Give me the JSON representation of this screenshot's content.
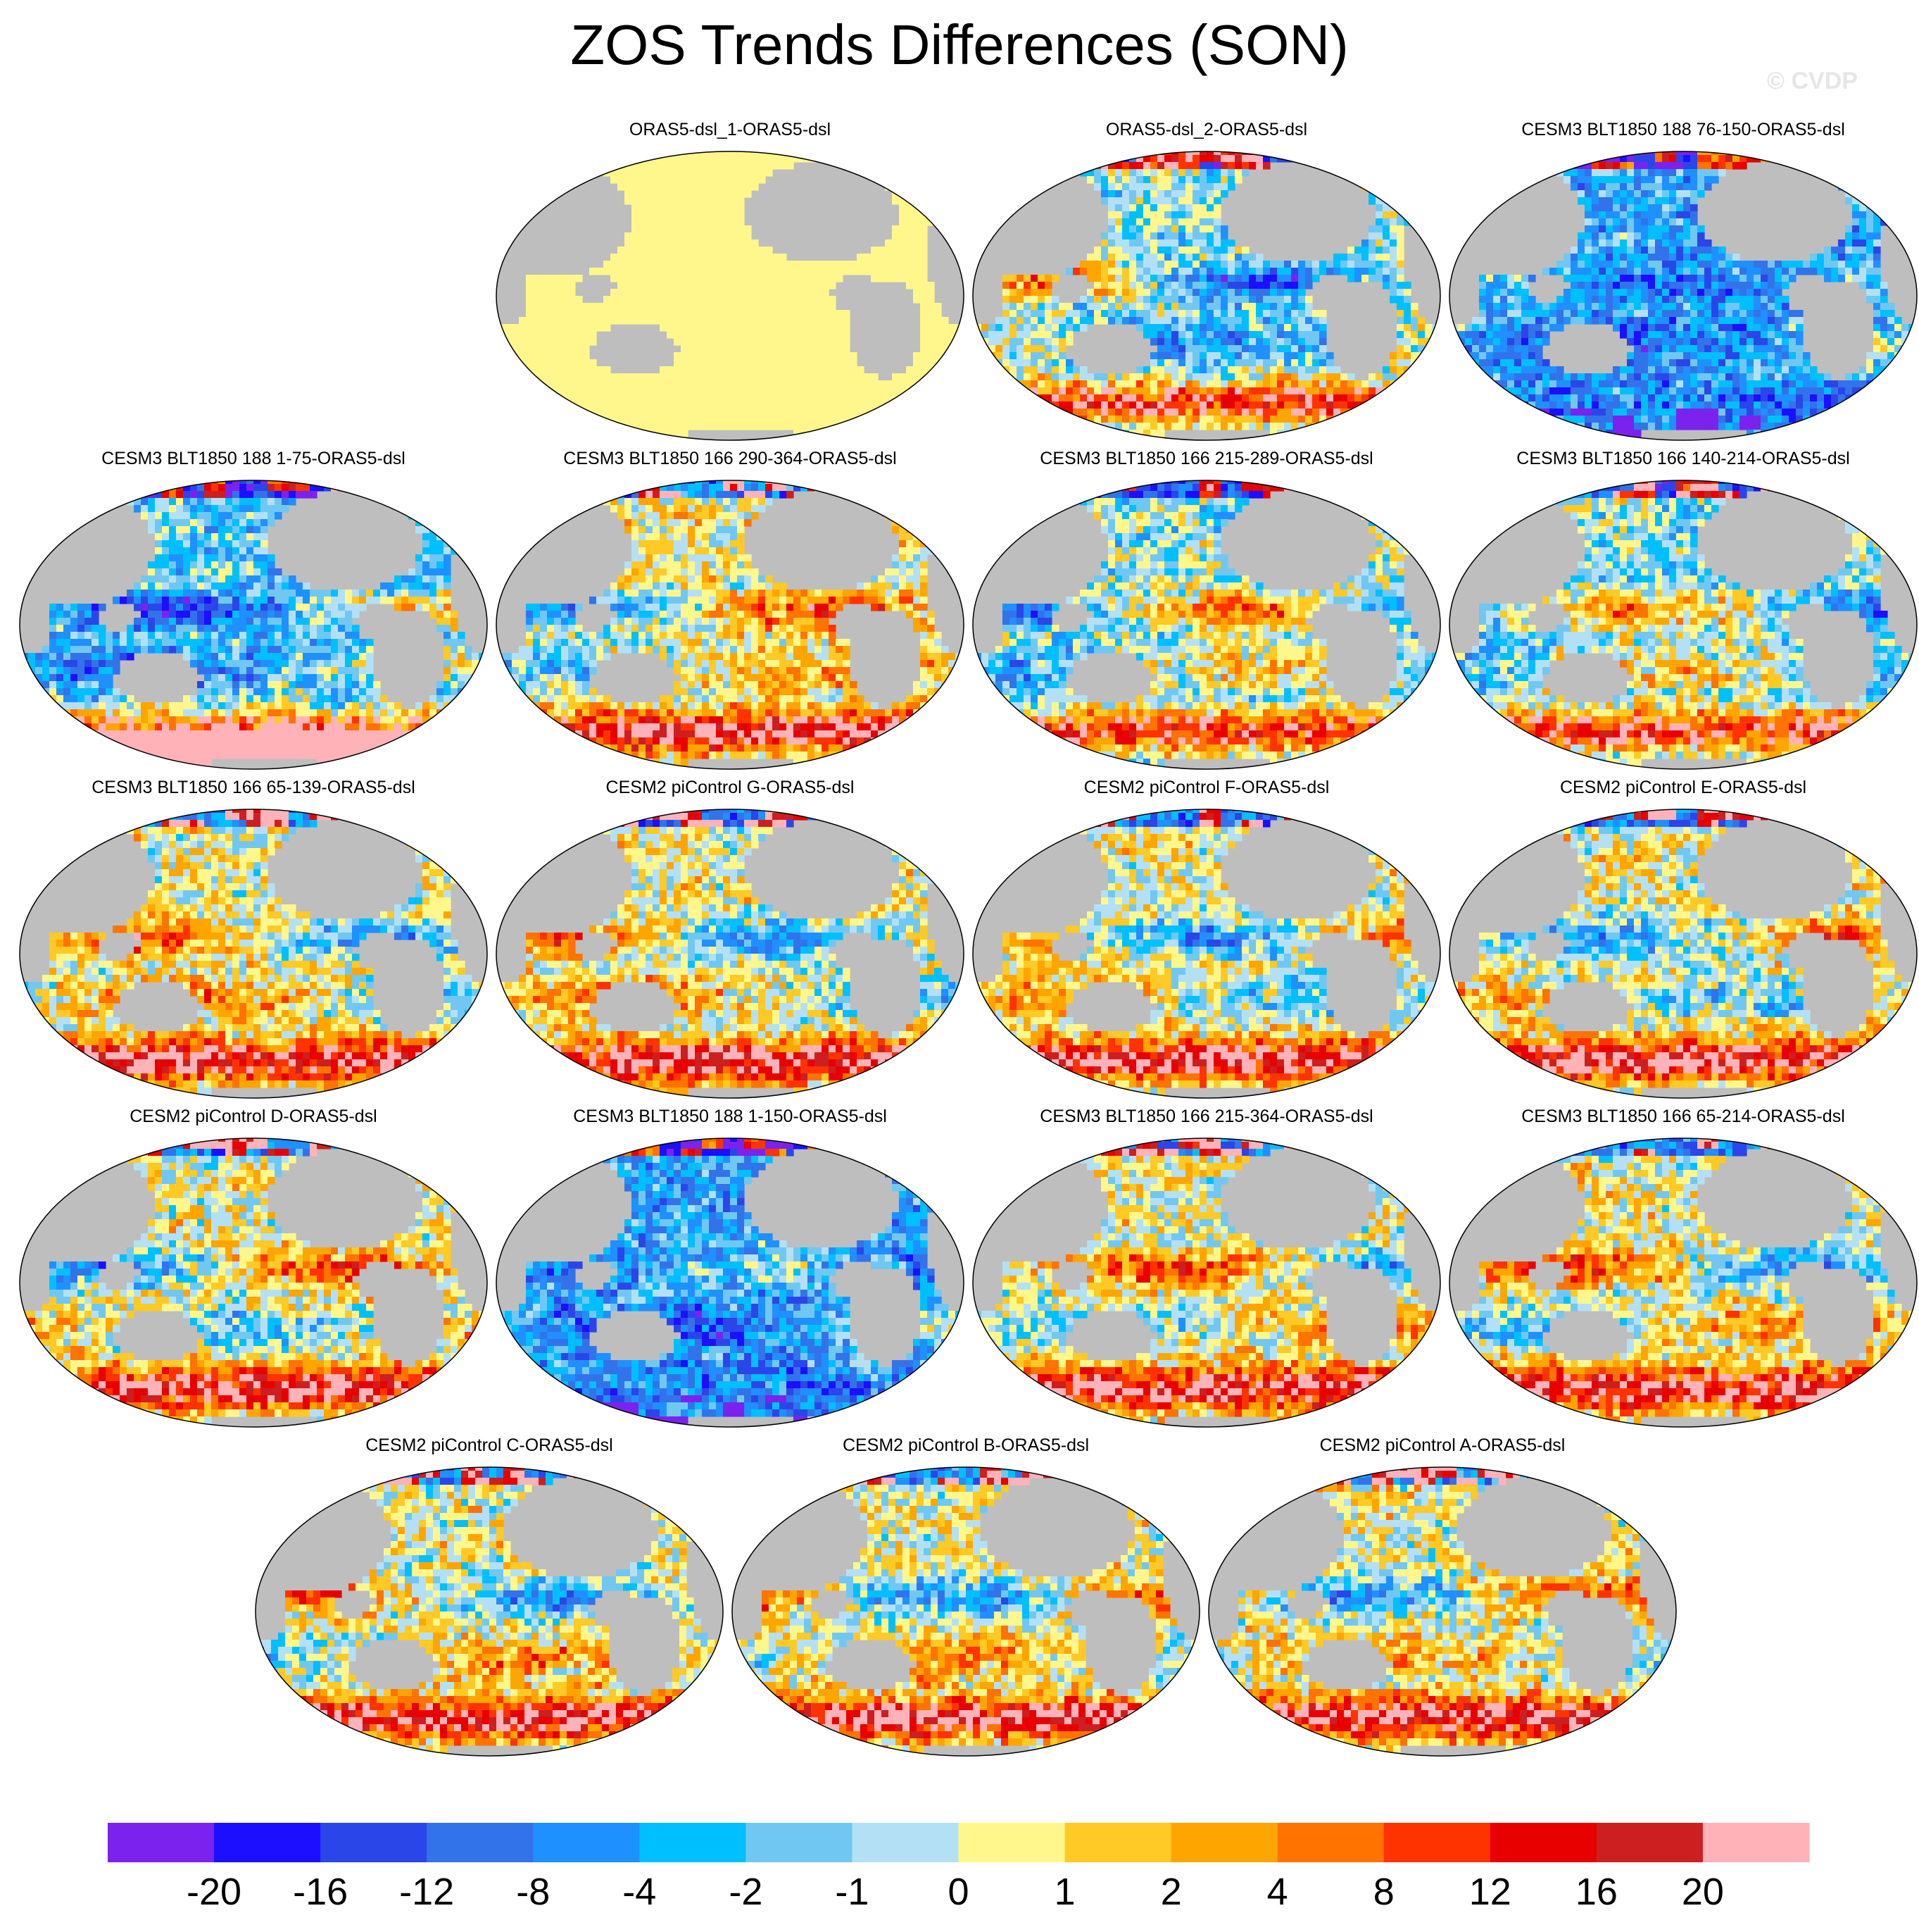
{
  "header": {
    "title": "ZOS Trends Differences (SON)",
    "credit": "© CVDP"
  },
  "chart_data": {
    "type": "heatmap",
    "title": "ZOS Trends Differences (SON)",
    "projection": "global map (robinson-like), ocean field, land shaded grey",
    "panels": [
      {
        "title": "ORAS5-dsl_1-ORAS5-dsl",
        "pattern": "uniform"
      },
      {
        "title": "ORAS5-dsl_2-ORAS5-dsl",
        "pattern": "mixed"
      },
      {
        "title": "CESM3 BLT1850 188 76-150-ORAS5-dsl",
        "pattern": "cool"
      },
      {
        "title": "CESM3 BLT1850 188 1-75-ORAS5-dsl",
        "pattern": "cool_pink_south"
      },
      {
        "title": "CESM3 BLT1850 166 290-364-ORAS5-dsl",
        "pattern": "warm"
      },
      {
        "title": "CESM3 BLT1850 166 215-289-ORAS5-dsl",
        "pattern": "mixed"
      },
      {
        "title": "CESM3 BLT1850 166 140-214-ORAS5-dsl",
        "pattern": "mixed"
      },
      {
        "title": "CESM3 BLT1850 166 65-139-ORAS5-dsl",
        "pattern": "warm"
      },
      {
        "title": "CESM2 piControl G-ORAS5-dsl",
        "pattern": "warm"
      },
      {
        "title": "CESM2 piControl F-ORAS5-dsl",
        "pattern": "warm"
      },
      {
        "title": "CESM2 piControl E-ORAS5-dsl",
        "pattern": "warm"
      },
      {
        "title": "CESM2 piControl D-ORAS5-dsl",
        "pattern": "warm"
      },
      {
        "title": "CESM3 BLT1850 188 1-150-ORAS5-dsl",
        "pattern": "cool"
      },
      {
        "title": "CESM3 BLT1850 166 215-364-ORAS5-dsl",
        "pattern": "warm"
      },
      {
        "title": "CESM3 BLT1850 166 65-214-ORAS5-dsl",
        "pattern": "warm"
      },
      {
        "title": "CESM2 piControl C-ORAS5-dsl",
        "pattern": "warm"
      },
      {
        "title": "CESM2 piControl B-ORAS5-dsl",
        "pattern": "warm"
      },
      {
        "title": "CESM2 piControl A-ORAS5-dsl",
        "pattern": "warm"
      }
    ],
    "colorbar": {
      "labels": [
        "-20",
        "-16",
        "-12",
        "-8",
        "-4",
        "-2",
        "-1",
        "0",
        "1",
        "2",
        "4",
        "8",
        "12",
        "16",
        "20"
      ],
      "colors": [
        "#7b22ee",
        "#1c0fff",
        "#2b46e8",
        "#3273ea",
        "#1f90ff",
        "#00bfff",
        "#70c8f2",
        "#b4e0f5",
        "#fff78c",
        "#ffc926",
        "#ffa500",
        "#ff7300",
        "#ff3300",
        "#e80000",
        "#cd1f1f",
        "#ffb3b8"
      ]
    },
    "land_color": "#bebebe"
  }
}
